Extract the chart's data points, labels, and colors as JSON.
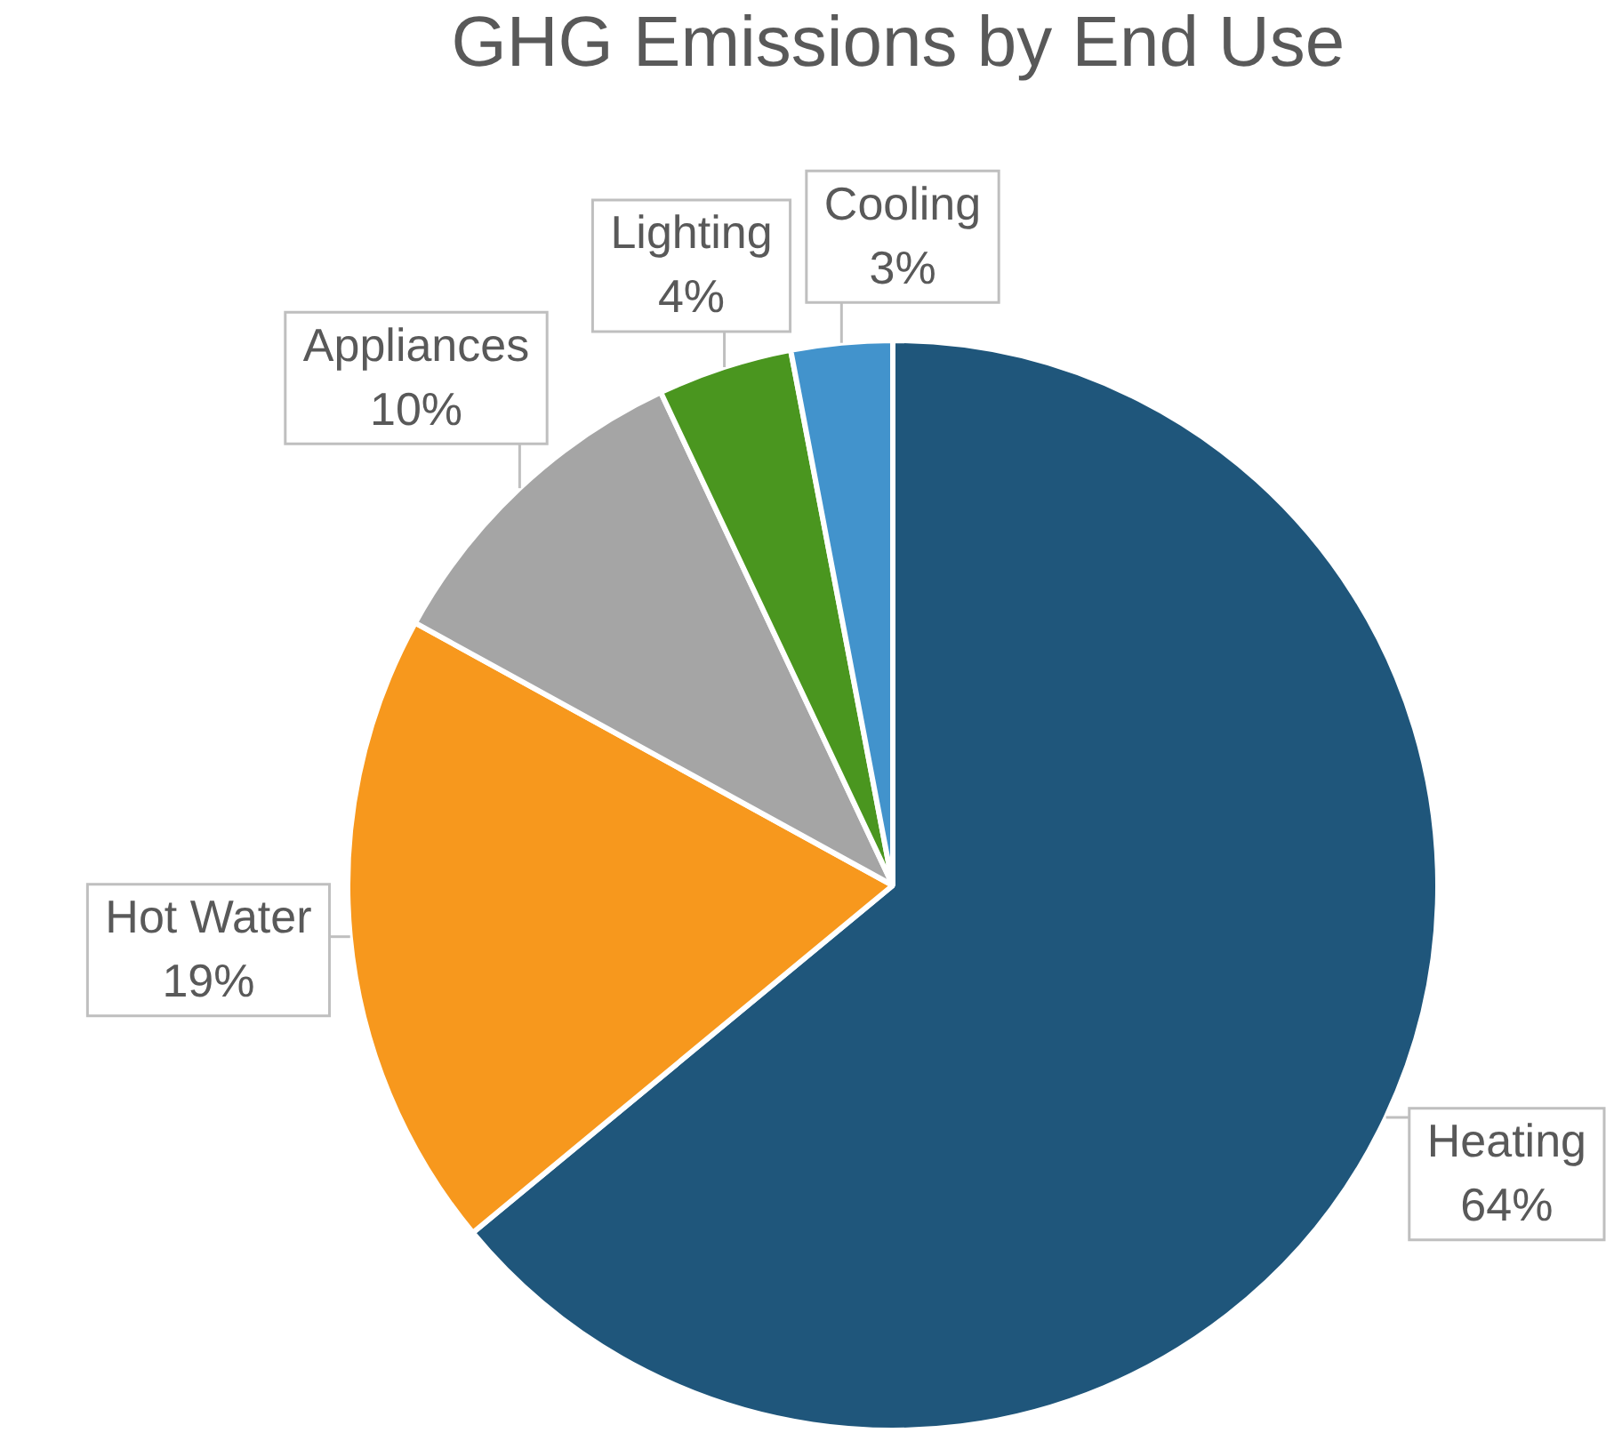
{
  "chart_data": {
    "type": "pie",
    "title": "GHG Emissions by End Use",
    "categories": [
      "Heating",
      "Hot Water",
      "Appliances",
      "Lighting",
      "Cooling"
    ],
    "values": [
      64,
      19,
      10,
      4,
      3
    ],
    "value_labels": [
      "64%",
      "19%",
      "10%",
      "4%",
      "3%"
    ],
    "colors": [
      "#1f567b",
      "#f7981d",
      "#a5a5a5",
      "#4a961f",
      "#4293cc"
    ],
    "legend": false
  }
}
